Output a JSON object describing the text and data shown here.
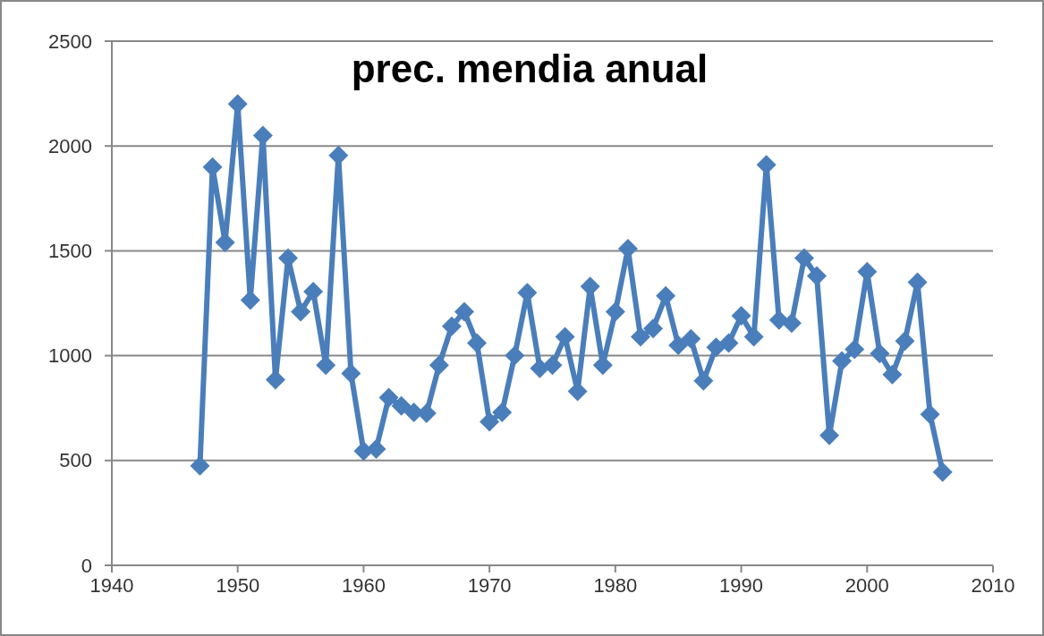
{
  "chart_data": {
    "type": "line",
    "title": "prec. mendia anual",
    "x": [
      1947,
      1948,
      1949,
      1950,
      1951,
      1952,
      1953,
      1954,
      1955,
      1956,
      1957,
      1958,
      1959,
      1960,
      1961,
      1962,
      1963,
      1964,
      1965,
      1966,
      1967,
      1968,
      1969,
      1970,
      1971,
      1972,
      1973,
      1974,
      1975,
      1976,
      1977,
      1978,
      1979,
      1980,
      1981,
      1982,
      1983,
      1984,
      1985,
      1986,
      1987,
      1988,
      1989,
      1990,
      1991,
      1992,
      1993,
      1994,
      1995,
      1996,
      1997,
      1998,
      1999,
      2000,
      2001,
      2002,
      2003,
      2004,
      2005,
      2006
    ],
    "series": [
      {
        "color": "#4a7ebb",
        "values": [
          475,
          1900,
          1540,
          2200,
          1265,
          2050,
          885,
          1465,
          1210,
          1305,
          955,
          1955,
          915,
          545,
          555,
          800,
          760,
          730,
          725,
          955,
          1140,
          1210,
          1060,
          685,
          730,
          1000,
          1300,
          940,
          955,
          1090,
          830,
          1330,
          955,
          1210,
          1510,
          1090,
          1130,
          1285,
          1050,
          1080,
          880,
          1040,
          1060,
          1190,
          1090,
          1910,
          1170,
          1155,
          1465,
          1380,
          620,
          975,
          1030,
          1400,
          1010,
          910,
          1070,
          1350,
          720,
          445
        ]
      }
    ],
    "xlim": [
      1940,
      2010
    ],
    "xticks": [
      1940,
      1950,
      1960,
      1970,
      1980,
      1990,
      2000,
      2010
    ],
    "ylim": [
      0,
      2500
    ],
    "yticks": [
      0,
      500,
      1000,
      1500,
      2000,
      2500
    ],
    "grid": "y",
    "marker": "diamond",
    "line_style": "solid"
  }
}
